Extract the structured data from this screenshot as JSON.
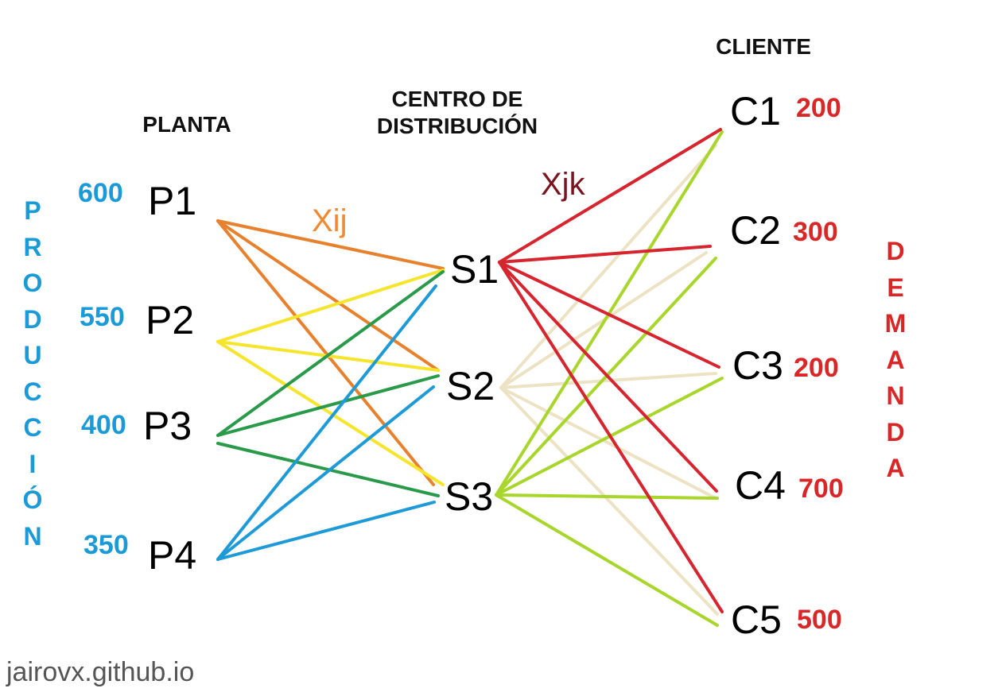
{
  "headers": {
    "planta": "PLANTA",
    "centro_line1": "CENTRO DE",
    "centro_line2": "DISTRIBUCIÓN",
    "cliente": "CLIENTE"
  },
  "side_labels": {
    "produccion": "PRODUCCIÓN",
    "demanda": "DEMANDA"
  },
  "variables": {
    "xij": "Xij",
    "xjk": "Xjk"
  },
  "plants": [
    {
      "label": "P1",
      "production": "600"
    },
    {
      "label": "P2",
      "production": "550"
    },
    {
      "label": "P3",
      "production": "400"
    },
    {
      "label": "P4",
      "production": "350"
    }
  ],
  "centers": [
    {
      "label": "S1"
    },
    {
      "label": "S2"
    },
    {
      "label": "S3"
    }
  ],
  "clients": [
    {
      "label": "C1",
      "demand": "200"
    },
    {
      "label": "C2",
      "demand": "300"
    },
    {
      "label": "C3",
      "demand": "200"
    },
    {
      "label": "C4",
      "demand": "700"
    },
    {
      "label": "C5",
      "demand": "500"
    }
  ],
  "colors": {
    "supply": "#1a9ad6",
    "demand": "#d92727",
    "xij": "#f08a30",
    "xjk": "#7a1520",
    "p1": "#e8812e",
    "p2": "#f5e52c",
    "p3": "#2a9a4a",
    "p4": "#1e9ad6",
    "s1": "#d6252f",
    "s2": "#ede3c4",
    "s3": "#a8d62c"
  },
  "footer": "jairovx.github.io"
}
